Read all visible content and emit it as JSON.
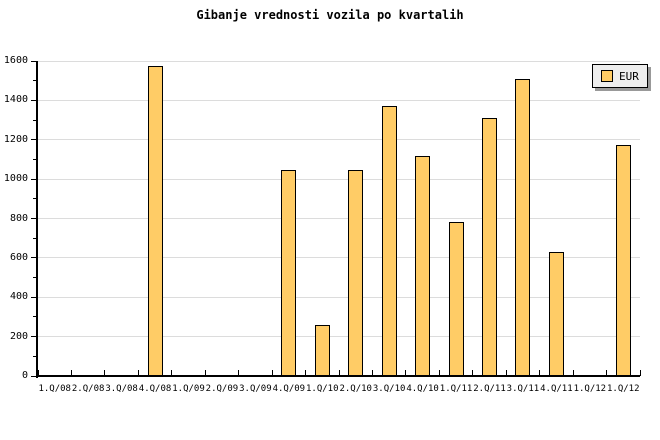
{
  "title": "Gibanje vrednosti vozila po kvartalih",
  "legend": {
    "label": "EUR"
  },
  "colors": {
    "bar_fill": "#FFCC66",
    "bar_border": "#000000",
    "gridline": "#DCDCDC",
    "axis": "#000000",
    "legend_bg": "#EEEEEE",
    "legend_shadow": "#999999",
    "background": "#FFFFFF",
    "text": "#000000"
  },
  "chart_data": {
    "type": "bar",
    "title": "Gibanje vrednosti vozila po kvartalih",
    "categories": [
      "1.Q/08",
      "2.Q/08",
      "3.Q/08",
      "4.Q/08",
      "1.Q/09",
      "2.Q/09",
      "3.Q/09",
      "4.Q/09",
      "1.Q/10",
      "2.Q/10",
      "3.Q/10",
      "4.Q/10",
      "1.Q/11",
      "2.Q/11",
      "3.Q/11",
      "4.Q/11",
      "1.Q/12",
      "1.Q/12"
    ],
    "series": [
      {
        "name": "EUR",
        "values": [
          0,
          0,
          0,
          1575,
          0,
          0,
          0,
          1045,
          260,
          1045,
          1370,
          1115,
          780,
          1310,
          1510,
          630,
          0,
          1175
        ]
      }
    ],
    "xlabel": "",
    "ylabel": "",
    "ylim": [
      0,
      1600
    ],
    "ytick_major": 200,
    "ytick_minor": 100,
    "grid": true,
    "legend_position": "top-right"
  }
}
